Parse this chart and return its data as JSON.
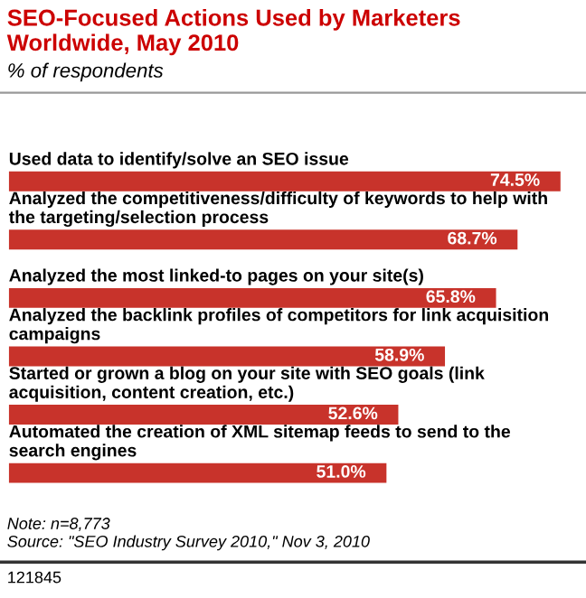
{
  "chart_data": {
    "type": "bar",
    "orientation": "horizontal",
    "title": "SEO-Focused Actions Used by Marketers Worldwide, May 2010",
    "subtitle": "% of respondents",
    "categories": [
      "Used data to identify/solve an SEO issue",
      "Analyzed the competitiveness/difficulty of keywords to help with the targeting/selection process",
      "Analyzed the most linked-to pages on your site(s)",
      "Analyzed the backlink profiles of competitors for link acquisition campaigns",
      "Started or grown a blog on your site with SEO goals (link acquisition, content creation, etc.)",
      "Automated the creation of XML sitemap feeds to send to the search engines"
    ],
    "values": [
      74.5,
      68.7,
      65.8,
      58.9,
      52.6,
      51.0
    ],
    "value_labels": [
      "74.5%",
      "68.7%",
      "65.8%",
      "58.9%",
      "52.6%",
      "51.0%"
    ],
    "color": "#c8332b",
    "legend": false,
    "annotations": [
      "Note: n=8,773",
      "Source: \"SEO Industry Survey 2010,\" Nov 3, 2010",
      "121845"
    ]
  }
}
